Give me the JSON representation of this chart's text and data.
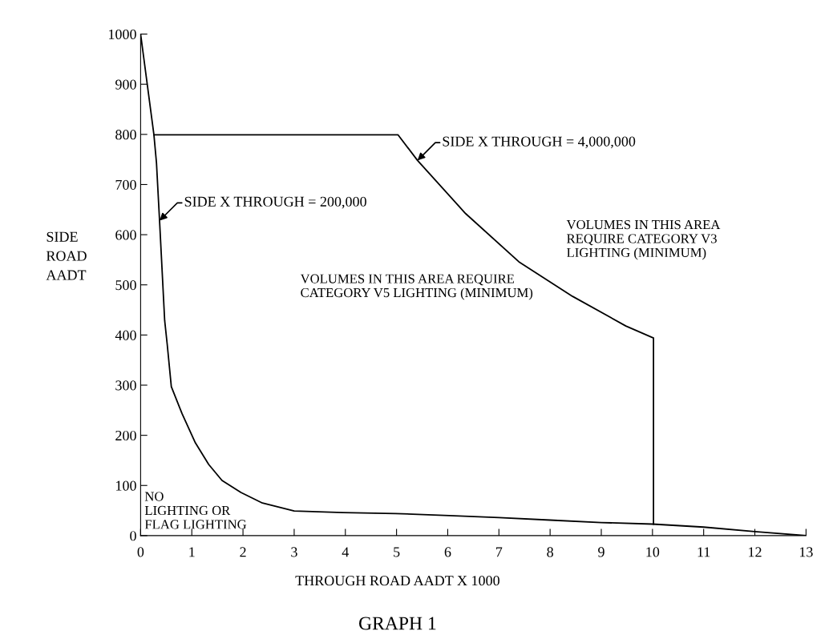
{
  "chart_data": {
    "type": "line",
    "title": "GRAPH 1",
    "xlabel": "THROUGH ROAD AADT X 1000",
    "ylabel": "SIDE\nROAD\nAADT",
    "xlim": [
      0,
      13
    ],
    "xticks": [
      0,
      1,
      2,
      3,
      4,
      5,
      6,
      7,
      8,
      9,
      10,
      11,
      12,
      13
    ],
    "ylim": [
      0,
      1000
    ],
    "yticks": [
      0,
      100,
      200,
      300,
      400,
      500,
      600,
      700,
      800,
      900,
      1000
    ],
    "grid": false,
    "marker": "none",
    "line_style": "solid",
    "series": [
      {
        "color": "#000000",
        "x": [
          0,
          0.26,
          0.31,
          0.37,
          0.47,
          0.52,
          0.6,
          0.81,
          1.07,
          1.33,
          1.59,
          1.96,
          2.38,
          3.0,
          3.95,
          4.98,
          6.03,
          7,
          8,
          9,
          10,
          11,
          12,
          13
        ],
        "values": [
          1000,
          799,
          743,
          628,
          429,
          381,
          297,
          243,
          185,
          142,
          110,
          86,
          65,
          49,
          46,
          44,
          40,
          36,
          31,
          26,
          23,
          17,
          8,
          0
        ]
      },
      {
        "color": "#000000",
        "x": [
          0.26,
          5.03,
          5.41,
          6.35,
          7.39,
          8.44,
          9.48,
          10.02,
          10.02
        ],
        "values": [
          799,
          799,
          748,
          642,
          546,
          477,
          418,
          394,
          23
        ]
      }
    ],
    "annotations": [
      {
        "text": "SIDE X THROUGH = 200,000",
        "x": 0.37,
        "y": 628
      },
      {
        "text": "SIDE X THROUGH = 4,000,000",
        "x": 5.41,
        "y": 748
      },
      "VOLUMES IN THIS AREA REQUIRE\nCATEGORY V5 LIGHTING (MINIMUM)",
      "VOLUMES IN THIS AREA\nREQUIRE CATEGORY V3\nLIGHTING (MINIMUM)",
      "NO\nLIGHTING OR\nFLAG LIGHTING"
    ]
  }
}
